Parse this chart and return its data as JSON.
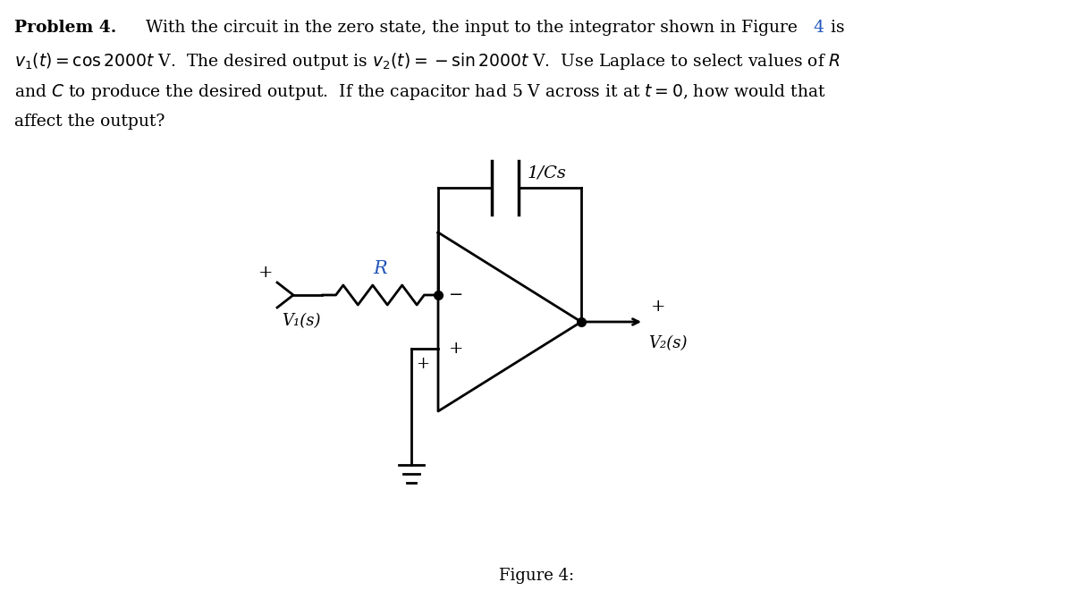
{
  "bg_color": "#ffffff",
  "text_color": "#000000",
  "blue_color": "#2255BB",
  "line_color": "#000000",
  "figsize": [
    12.0,
    6.7
  ],
  "dpi": 100,
  "figure_label": "Figure 4:",
  "R_label": "R",
  "impedance_label": "1/Cs",
  "V1_label": "V₁(s)",
  "V2_label": "V₂(s)",
  "font_size_text": 13.5,
  "font_size_circuit": 13
}
